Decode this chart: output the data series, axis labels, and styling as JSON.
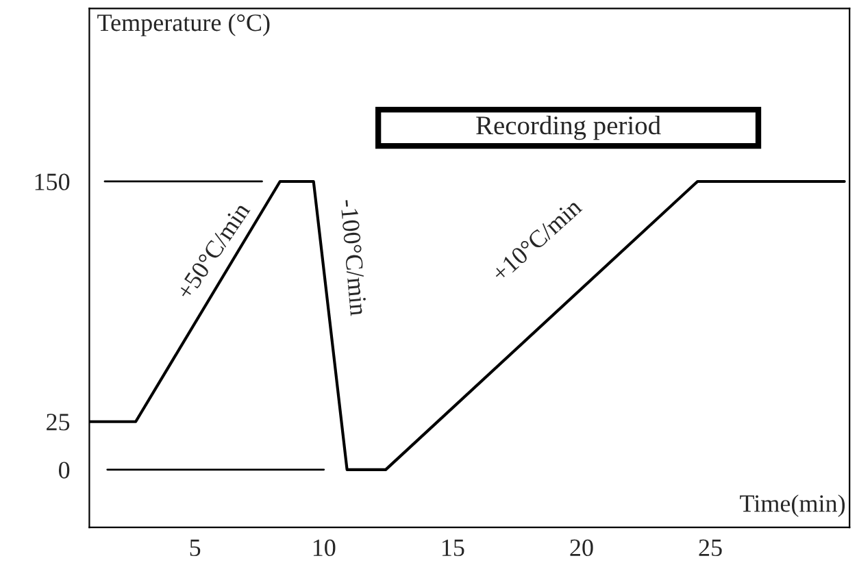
{
  "chart_data": {
    "type": "line",
    "xlabel": "Time(min)",
    "ylabel": "Temperature (°C)",
    "xlim": [
      0.9,
      30.4
    ],
    "ylim": [
      -30,
      240
    ],
    "xticks": [
      5,
      10,
      15,
      20,
      25
    ],
    "yticks": [
      0,
      25,
      150
    ],
    "grid": false,
    "legend": false,
    "marker": "none",
    "line_style": "solid",
    "series": [
      {
        "color": "#000000",
        "x": [
          0.9,
          2.7,
          8.3,
          9.6,
          10.9,
          12.4,
          24.5,
          30.2
        ],
        "values": [
          25,
          25,
          150,
          150,
          0,
          0,
          150,
          150
        ]
      },
      {
        "color": "#000000",
        "x": [
          1.5,
          7.6
        ],
        "values": [
          150,
          150
        ]
      },
      {
        "color": "#000000",
        "x": [
          1.6,
          10.0
        ],
        "values": [
          0,
          0
        ]
      }
    ],
    "annotations": [
      "+50°C/min",
      "-100°C/min",
      "+10°C/min",
      "Recording period"
    ]
  }
}
